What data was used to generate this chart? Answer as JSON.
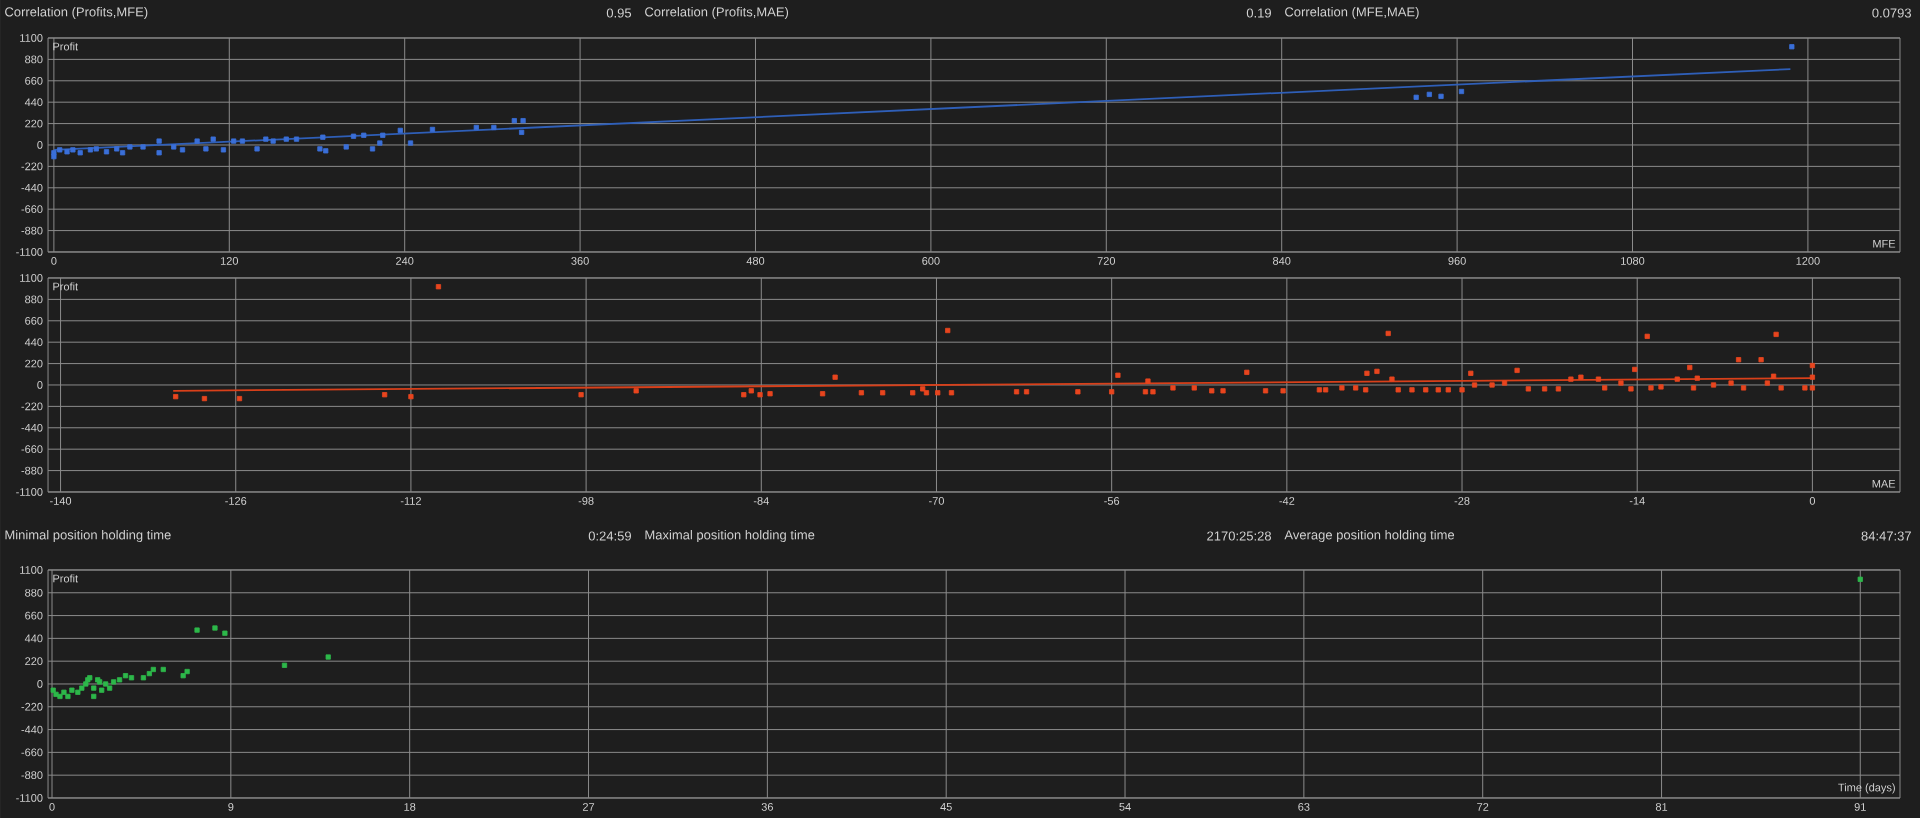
{
  "chart_data": [
    {
      "type": "scatter",
      "xlabel": "MFE",
      "ylabel": "Profit",
      "annotations": [
        "Correlation (Profits,MFE)",
        "0.95",
        "Correlation (Profits,MAE)",
        "0.19",
        "Correlation (MFE,MAE)",
        "0.0793"
      ],
      "xlim": [
        -4,
        1263
      ],
      "ylim": [
        -1100,
        1100
      ],
      "xticks": [
        0,
        120,
        240,
        360,
        480,
        600,
        720,
        840,
        960,
        1080,
        1200
      ],
      "yticks": [
        -1100,
        -880,
        -660,
        -440,
        -220,
        0,
        220,
        440,
        660,
        880,
        1100
      ],
      "grid": true,
      "series": [
        {
          "color": "#3a6fd8",
          "marker": "square",
          "x": [
            0,
            0,
            4,
            9,
            13,
            18,
            25,
            29,
            36,
            43,
            47,
            52,
            61,
            72,
            72,
            82,
            88,
            98,
            104,
            109,
            116,
            123,
            129,
            139,
            145,
            150,
            159,
            166,
            182,
            184,
            186,
            200,
            205,
            212,
            218,
            223,
            225,
            237,
            244,
            259,
            289,
            301,
            315,
            321,
            320,
            932,
            941,
            949,
            963,
            1189
          ],
          "values": [
            -120,
            -80,
            -50,
            -70,
            -50,
            -80,
            -50,
            -40,
            -70,
            -40,
            -80,
            -20,
            -20,
            40,
            -80,
            -20,
            -50,
            40,
            -40,
            60,
            -50,
            40,
            40,
            -40,
            60,
            40,
            60,
            60,
            -40,
            80,
            -60,
            -20,
            90,
            100,
            -40,
            20,
            100,
            150,
            20,
            160,
            180,
            180,
            250,
            250,
            130,
            490,
            520,
            500,
            550,
            1010
          ]
        },
        {
          "type": "line",
          "color": "#2f5fb8",
          "x": [
            0,
            1188
          ],
          "values": [
            -50,
            780
          ]
        }
      ]
    },
    {
      "type": "scatter",
      "xlabel": "MAE",
      "ylabel": "Profit",
      "xlim": [
        -141,
        7
      ],
      "ylim": [
        -1100,
        1100
      ],
      "xticks": [
        -140,
        -126,
        -112,
        -98,
        -84,
        -70,
        -56,
        -42,
        -28,
        -14,
        0
      ],
      "yticks": [
        -1100,
        -880,
        -660,
        -440,
        -220,
        0,
        220,
        440,
        660,
        880,
        1100
      ],
      "grid": true,
      "series": [
        {
          "color": "#e8451e",
          "marker": "square",
          "x": [
            -130.8,
            -128.5,
            -125.7,
            -114.1,
            -112.0,
            -109.8,
            -98.4,
            -94.0,
            -85.4,
            -84.8,
            -84.1,
            -83.3,
            -79.1,
            -78.1,
            -76.0,
            -74.3,
            -71.9,
            -71.1,
            -70.8,
            -69.9,
            -69.1,
            -68.8,
            -63.6,
            -62.8,
            -58.7,
            -56,
            -55.5,
            -53.3,
            -53.1,
            -52.7,
            -51.1,
            -49.4,
            -48,
            -47.1,
            -45.2,
            -43.7,
            -42.3,
            -39.4,
            -38.9,
            -37.6,
            -36.5,
            -35.7,
            -35.6,
            -34.8,
            -33.9,
            -33.6,
            -33.1,
            -32,
            -30.9,
            -29.9,
            -29.1,
            -28,
            -27.3,
            -27,
            -25.6,
            -24.6,
            -23.6,
            -22.7,
            -21.4,
            -20.3,
            -19.3,
            -18.5,
            -17.1,
            -16.6,
            -15.3,
            -14.5,
            -14.2,
            -13.2,
            -12.9,
            -12.1,
            -10.8,
            -9.8,
            -9.5,
            -9.2,
            -7.9,
            -6.5,
            -5.9,
            -5.5,
            -4.1,
            -3.6,
            -3.1,
            -2.9,
            -2.5,
            -0.6,
            0,
            0,
            0
          ],
          "values": [
            -120,
            -140,
            -140,
            -100,
            -120,
            1010,
            -100,
            -60,
            -100,
            -60,
            -100,
            -90,
            -90,
            80,
            -80,
            -80,
            -80,
            -40,
            -80,
            -80,
            560,
            -80,
            -70,
            -70,
            -70,
            -70,
            100,
            -70,
            40,
            -70,
            -30,
            -30,
            -60,
            -60,
            130,
            -60,
            -60,
            -50,
            -50,
            -30,
            -30,
            -50,
            120,
            140,
            530,
            60,
            -50,
            -50,
            -50,
            -50,
            -50,
            -50,
            120,
            0,
            0,
            20,
            150,
            -40,
            -40,
            -40,
            60,
            80,
            60,
            -30,
            20,
            -40,
            160,
            500,
            -30,
            -20,
            60,
            180,
            -30,
            70,
            0,
            20,
            260,
            -30,
            260,
            20,
            90,
            520,
            -30,
            -30,
            200,
            80,
            -30
          ]
        },
        {
          "type": "line",
          "color": "#d9401a",
          "x": [
            -131,
            0
          ],
          "values": [
            -60,
            70
          ]
        }
      ]
    },
    {
      "type": "scatter",
      "xlabel": "Time (days)",
      "ylabel": "Profit",
      "annotations": [
        "Minimal position holding time",
        "0:24:59",
        "Maximal position holding time",
        "2170:25:28",
        "Average position holding time",
        "84:47:37"
      ],
      "xlim": [
        -0.2,
        93
      ],
      "ylim": [
        -1100,
        1100
      ],
      "xticks": [
        0,
        9,
        18,
        27,
        36,
        45,
        54,
        63,
        72,
        81,
        91
      ],
      "yticks": [
        -1100,
        -880,
        -660,
        -440,
        -220,
        0,
        220,
        440,
        660,
        880,
        1100
      ],
      "grid": true,
      "series": [
        {
          "color": "#2db84a",
          "marker": "square",
          "x": [
            0.06,
            0.2,
            0.4,
            0.6,
            0.8,
            1.0,
            1.3,
            1.5,
            1.7,
            1.9,
            2.1,
            2.1,
            2.3,
            2.4,
            2.5,
            2.7,
            2.9,
            1.8,
            3.1,
            3.4,
            3.7,
            4.0,
            4.6,
            4.9,
            5.1,
            5.6,
            6.6,
            6.8,
            7.3,
            8.2,
            8.7,
            11.7,
            13.9,
            91
          ],
          "values": [
            -60,
            -100,
            -120,
            -80,
            -120,
            -60,
            -80,
            -40,
            0,
            60,
            -40,
            -120,
            40,
            20,
            -60,
            0,
            -40,
            40,
            20,
            40,
            80,
            60,
            60,
            100,
            140,
            140,
            80,
            120,
            520,
            540,
            490,
            180,
            260,
            1010
          ]
        }
      ]
    }
  ]
}
